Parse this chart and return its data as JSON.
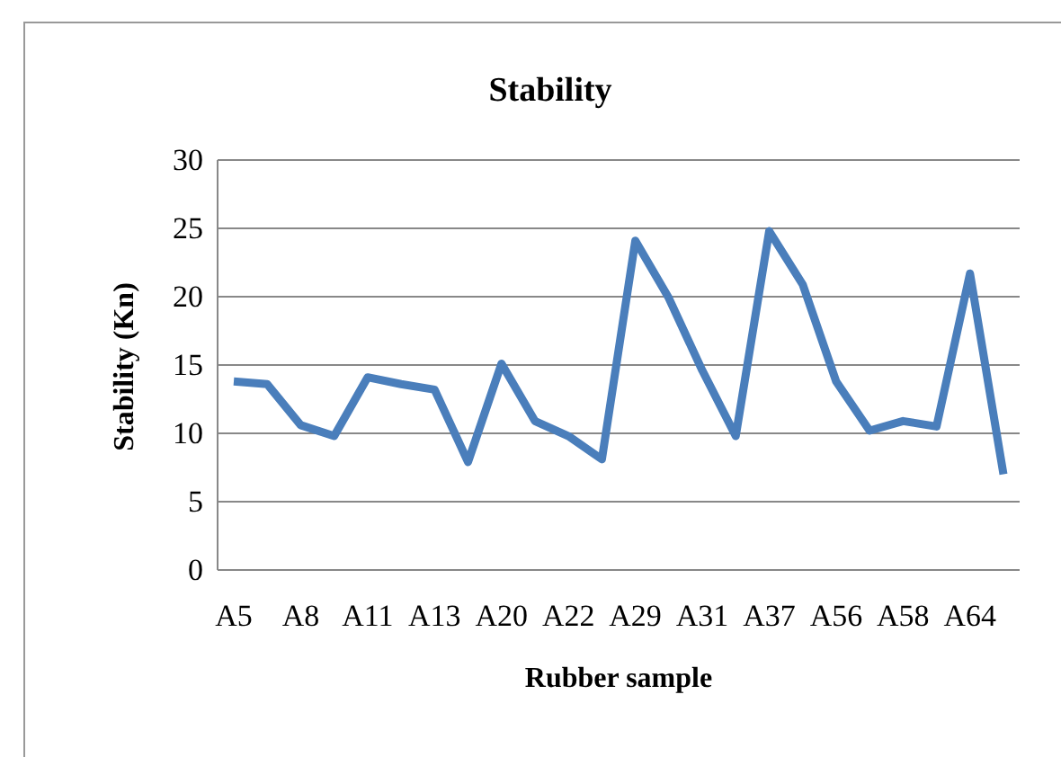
{
  "chart_data": {
    "type": "line",
    "title": "Stability",
    "xlabel": "Rubber sample",
    "ylabel": "Stability (Kn)",
    "categories": [
      "A5",
      null,
      "A8",
      null,
      "A11",
      null,
      "A13",
      null,
      "A20",
      null,
      "A22",
      null,
      "A29",
      null,
      "A31",
      null,
      "A37",
      null,
      "A56",
      null,
      "A58",
      null,
      "A64",
      null
    ],
    "series": [
      {
        "color": "#4a7ebb",
        "values": [
          13.8,
          13.6,
          10.6,
          9.8,
          14.1,
          13.6,
          13.2,
          7.9,
          15.1,
          10.9,
          9.8,
          8.1,
          24.1,
          19.9,
          14.6,
          9.8,
          24.8,
          20.9,
          13.8,
          10.2,
          10.9,
          10.5,
          21.7,
          7.0
        ]
      }
    ],
    "ylim": [
      0,
      30
    ],
    "yticks": [
      0,
      5,
      10,
      15,
      20,
      25,
      30
    ],
    "grid": "y",
    "marker": "none",
    "line_style": "solid"
  }
}
